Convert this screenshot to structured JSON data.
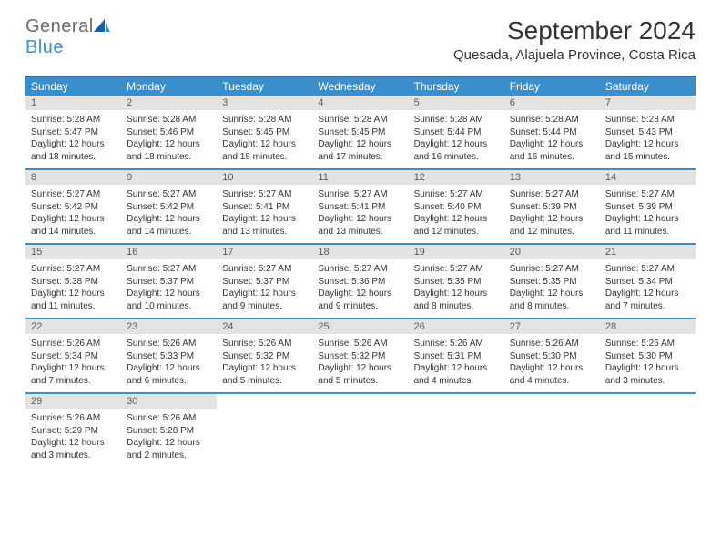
{
  "logo": {
    "general": "General",
    "blue": "Blue"
  },
  "title": "September 2024",
  "location": "Quesada, Alajuela Province, Costa Rica",
  "colors": {
    "header_bg": "#3a8ecb",
    "header_text": "#ffffff",
    "border": "#3a8ecb",
    "top_border": "#2f6fa3",
    "daynum_bg": "#e3e3e3",
    "daynum_text": "#5a5a5a",
    "body_text": "#333333",
    "logo_gray": "#6b6b6b",
    "logo_blue": "#3a8ecb",
    "page_bg": "#ffffff"
  },
  "day_names": [
    "Sunday",
    "Monday",
    "Tuesday",
    "Wednesday",
    "Thursday",
    "Friday",
    "Saturday"
  ],
  "weeks": [
    [
      {
        "num": "1",
        "sunrise": "Sunrise: 5:28 AM",
        "sunset": "Sunset: 5:47 PM",
        "daylight": "Daylight: 12 hours and 18 minutes."
      },
      {
        "num": "2",
        "sunrise": "Sunrise: 5:28 AM",
        "sunset": "Sunset: 5:46 PM",
        "daylight": "Daylight: 12 hours and 18 minutes."
      },
      {
        "num": "3",
        "sunrise": "Sunrise: 5:28 AM",
        "sunset": "Sunset: 5:45 PM",
        "daylight": "Daylight: 12 hours and 18 minutes."
      },
      {
        "num": "4",
        "sunrise": "Sunrise: 5:28 AM",
        "sunset": "Sunset: 5:45 PM",
        "daylight": "Daylight: 12 hours and 17 minutes."
      },
      {
        "num": "5",
        "sunrise": "Sunrise: 5:28 AM",
        "sunset": "Sunset: 5:44 PM",
        "daylight": "Daylight: 12 hours and 16 minutes."
      },
      {
        "num": "6",
        "sunrise": "Sunrise: 5:28 AM",
        "sunset": "Sunset: 5:44 PM",
        "daylight": "Daylight: 12 hours and 16 minutes."
      },
      {
        "num": "7",
        "sunrise": "Sunrise: 5:28 AM",
        "sunset": "Sunset: 5:43 PM",
        "daylight": "Daylight: 12 hours and 15 minutes."
      }
    ],
    [
      {
        "num": "8",
        "sunrise": "Sunrise: 5:27 AM",
        "sunset": "Sunset: 5:42 PM",
        "daylight": "Daylight: 12 hours and 14 minutes."
      },
      {
        "num": "9",
        "sunrise": "Sunrise: 5:27 AM",
        "sunset": "Sunset: 5:42 PM",
        "daylight": "Daylight: 12 hours and 14 minutes."
      },
      {
        "num": "10",
        "sunrise": "Sunrise: 5:27 AM",
        "sunset": "Sunset: 5:41 PM",
        "daylight": "Daylight: 12 hours and 13 minutes."
      },
      {
        "num": "11",
        "sunrise": "Sunrise: 5:27 AM",
        "sunset": "Sunset: 5:41 PM",
        "daylight": "Daylight: 12 hours and 13 minutes."
      },
      {
        "num": "12",
        "sunrise": "Sunrise: 5:27 AM",
        "sunset": "Sunset: 5:40 PM",
        "daylight": "Daylight: 12 hours and 12 minutes."
      },
      {
        "num": "13",
        "sunrise": "Sunrise: 5:27 AM",
        "sunset": "Sunset: 5:39 PM",
        "daylight": "Daylight: 12 hours and 12 minutes."
      },
      {
        "num": "14",
        "sunrise": "Sunrise: 5:27 AM",
        "sunset": "Sunset: 5:39 PM",
        "daylight": "Daylight: 12 hours and 11 minutes."
      }
    ],
    [
      {
        "num": "15",
        "sunrise": "Sunrise: 5:27 AM",
        "sunset": "Sunset: 5:38 PM",
        "daylight": "Daylight: 12 hours and 11 minutes."
      },
      {
        "num": "16",
        "sunrise": "Sunrise: 5:27 AM",
        "sunset": "Sunset: 5:37 PM",
        "daylight": "Daylight: 12 hours and 10 minutes."
      },
      {
        "num": "17",
        "sunrise": "Sunrise: 5:27 AM",
        "sunset": "Sunset: 5:37 PM",
        "daylight": "Daylight: 12 hours and 9 minutes."
      },
      {
        "num": "18",
        "sunrise": "Sunrise: 5:27 AM",
        "sunset": "Sunset: 5:36 PM",
        "daylight": "Daylight: 12 hours and 9 minutes."
      },
      {
        "num": "19",
        "sunrise": "Sunrise: 5:27 AM",
        "sunset": "Sunset: 5:35 PM",
        "daylight": "Daylight: 12 hours and 8 minutes."
      },
      {
        "num": "20",
        "sunrise": "Sunrise: 5:27 AM",
        "sunset": "Sunset: 5:35 PM",
        "daylight": "Daylight: 12 hours and 8 minutes."
      },
      {
        "num": "21",
        "sunrise": "Sunrise: 5:27 AM",
        "sunset": "Sunset: 5:34 PM",
        "daylight": "Daylight: 12 hours and 7 minutes."
      }
    ],
    [
      {
        "num": "22",
        "sunrise": "Sunrise: 5:26 AM",
        "sunset": "Sunset: 5:34 PM",
        "daylight": "Daylight: 12 hours and 7 minutes."
      },
      {
        "num": "23",
        "sunrise": "Sunrise: 5:26 AM",
        "sunset": "Sunset: 5:33 PM",
        "daylight": "Daylight: 12 hours and 6 minutes."
      },
      {
        "num": "24",
        "sunrise": "Sunrise: 5:26 AM",
        "sunset": "Sunset: 5:32 PM",
        "daylight": "Daylight: 12 hours and 5 minutes."
      },
      {
        "num": "25",
        "sunrise": "Sunrise: 5:26 AM",
        "sunset": "Sunset: 5:32 PM",
        "daylight": "Daylight: 12 hours and 5 minutes."
      },
      {
        "num": "26",
        "sunrise": "Sunrise: 5:26 AM",
        "sunset": "Sunset: 5:31 PM",
        "daylight": "Daylight: 12 hours and 4 minutes."
      },
      {
        "num": "27",
        "sunrise": "Sunrise: 5:26 AM",
        "sunset": "Sunset: 5:30 PM",
        "daylight": "Daylight: 12 hours and 4 minutes."
      },
      {
        "num": "28",
        "sunrise": "Sunrise: 5:26 AM",
        "sunset": "Sunset: 5:30 PM",
        "daylight": "Daylight: 12 hours and 3 minutes."
      }
    ],
    [
      {
        "num": "29",
        "sunrise": "Sunrise: 5:26 AM",
        "sunset": "Sunset: 5:29 PM",
        "daylight": "Daylight: 12 hours and 3 minutes."
      },
      {
        "num": "30",
        "sunrise": "Sunrise: 5:26 AM",
        "sunset": "Sunset: 5:28 PM",
        "daylight": "Daylight: 12 hours and 2 minutes."
      },
      null,
      null,
      null,
      null,
      null
    ]
  ]
}
